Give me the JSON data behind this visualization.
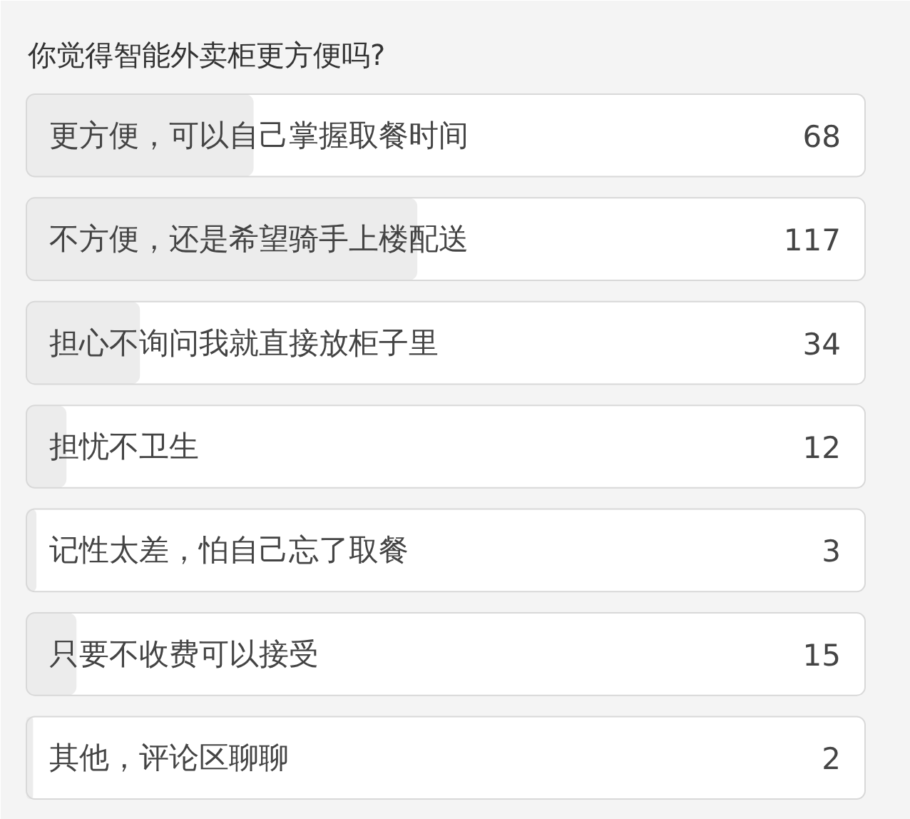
{
  "chart_data": {
    "type": "bar",
    "orientation": "horizontal",
    "title": "你觉得智能外卖柜更方便吗?",
    "categories": [
      "更方便，可以自己掌握取餐时间",
      "不方便，还是希望骑手上楼配送",
      "担心不询问我就直接放柜子里",
      "担忧不卫生",
      "记性太差，怕自己忘了取餐",
      "只要不收费可以接受",
      "其他，评论区聊聊"
    ],
    "values": [
      68,
      117,
      34,
      12,
      3,
      15,
      2
    ],
    "color": "#ececec",
    "data_labels": true,
    "grid": false
  }
}
